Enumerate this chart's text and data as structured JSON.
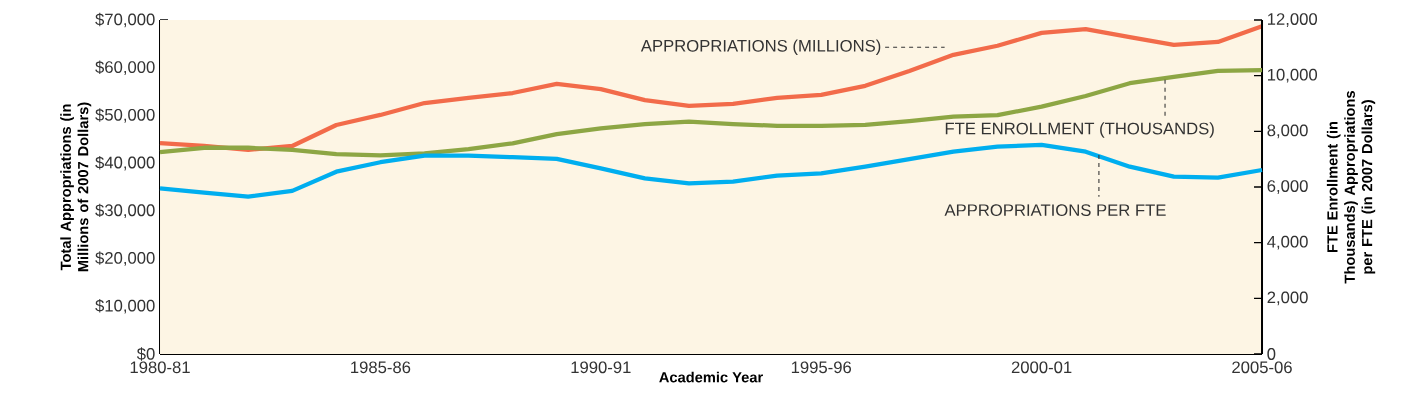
{
  "chart_data": {
    "type": "line",
    "categories": [
      "1980-81",
      null,
      null,
      null,
      null,
      "1985-86",
      null,
      null,
      null,
      null,
      "1990-91",
      null,
      null,
      null,
      null,
      "1995-96",
      null,
      null,
      null,
      null,
      "2000-01",
      null,
      null,
      null,
      null,
      "2005-06"
    ],
    "xlabel": "Academic Year",
    "ylabel": "Total Appropriations (in Millions of 2007 Dollars)",
    "y2label": "FTE Enrollment (in Thousands) Appropriations per FTE (in 2007 Dollars)",
    "ylim": [
      0,
      70000
    ],
    "yticks": [
      {
        "value": 0,
        "label": "$0"
      },
      {
        "value": 10000,
        "label": "$10,000"
      },
      {
        "value": 20000,
        "label": "$20,000"
      },
      {
        "value": 30000,
        "label": "$30,000"
      },
      {
        "value": 40000,
        "label": "$40,000"
      },
      {
        "value": 50000,
        "label": "$50,000"
      },
      {
        "value": 60000,
        "label": "$60,000"
      },
      {
        "value": 70000,
        "label": "$70,000"
      }
    ],
    "y2lim": [
      0,
      12000
    ],
    "y2ticks": [
      0,
      {
        "value": 2000,
        "label": "2,000"
      },
      {
        "value": 4000,
        "label": "4,000"
      },
      {
        "value": 6000,
        "label": "6,000"
      },
      {
        "value": 8000,
        "label": "8,000"
      },
      {
        "value": 10000,
        "label": "10,000"
      },
      {
        "value": 12000,
        "label": "12,000"
      }
    ],
    "marker": "none",
    "line_style": "solid",
    "series": [
      {
        "name": "APPROPRIATIONS (MILLIONS)",
        "color": "#f26b4a",
        "values": [
          44200,
          43600,
          42800,
          43600,
          48000,
          50100,
          52600,
          53700,
          54700,
          56600,
          55500,
          53200,
          52000,
          52400,
          53700,
          54300,
          56200,
          59300,
          62700,
          64600,
          67300,
          68100,
          66400,
          64800,
          65400,
          68700
        ]
      },
      {
        "name": "FTE ENROLLMENT (THOUSANDS)",
        "color": "#8da644",
        "axis": "y2",
        "values": [
          7250,
          7410,
          7410,
          7330,
          7180,
          7140,
          7210,
          7360,
          7570,
          7900,
          8110,
          8260,
          8350,
          8260,
          8200,
          8200,
          8230,
          8370,
          8530,
          8580,
          8890,
          9270,
          9730,
          9960,
          10170,
          10200
        ]
      },
      {
        "name": "APPROPRIATIONS PER FTE",
        "color": "#00aeef",
        "axis": "y2",
        "values": [
          5950,
          5800,
          5650,
          5860,
          6550,
          6890,
          7130,
          7130,
          7070,
          7010,
          6670,
          6310,
          6130,
          6190,
          6410,
          6490,
          6730,
          7000,
          7270,
          7450,
          7510,
          7270,
          6730,
          6370,
          6340,
          6610
        ]
      }
    ]
  }
}
